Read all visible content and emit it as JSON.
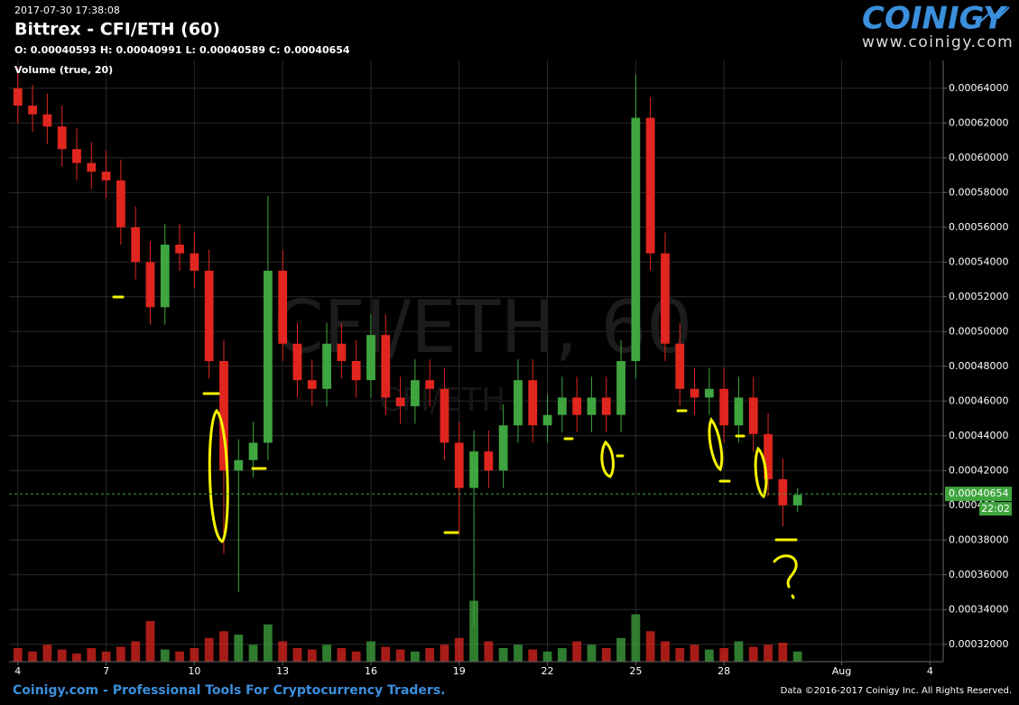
{
  "chart_data": {
    "type": "candlestick",
    "title": "Bittrex - CFI/ETH (60)",
    "subtitle": "2017-07-30 17:38:08",
    "ohlc_summary": [
      {
        "label": "O:",
        "value": 0.00040593
      },
      {
        "label": "H:",
        "value": 0.00040991
      },
      {
        "label": "L:",
        "value": 0.00040589
      },
      {
        "label": "C:",
        "value": 0.00040654
      }
    ],
    "volume_label": "Volume (true, 20)",
    "watermark": "CFI/ETH, 60",
    "watermark_sub": "CFI/ETH",
    "up_color": "#3fa53f",
    "down_color": "#e0261f",
    "grid": true,
    "x": [
      0,
      0.5,
      1,
      1.5,
      2,
      2.5,
      3,
      3.5,
      4,
      4.5,
      5,
      5.5,
      6,
      6.5,
      7,
      7.5,
      8,
      8.5,
      9,
      9.5,
      10,
      10.5,
      11,
      11.5,
      12,
      12.5,
      13,
      13.5,
      14,
      14.5,
      15,
      15.5,
      16,
      16.5,
      17,
      17.5,
      18,
      18.5,
      19,
      19.5,
      20,
      20.5,
      21,
      21.5,
      22,
      22.5,
      23,
      23.5,
      24,
      24.5,
      25,
      25.5,
      26,
      26.5
    ],
    "open": [
      0.00064,
      0.00063,
      0.000625,
      0.000618,
      0.000605,
      0.000597,
      0.000592,
      0.000587,
      0.00056,
      0.00054,
      0.000514,
      0.00055,
      0.000545,
      0.000535,
      0.000483,
      0.00042,
      0.000426,
      0.000436,
      0.000535,
      0.000493,
      0.000472,
      0.000467,
      0.000493,
      0.000483,
      0.000472,
      0.000498,
      0.000462,
      0.000457,
      0.000472,
      0.000467,
      0.000436,
      0.00041,
      0.000431,
      0.00042,
      0.000446,
      0.000472,
      0.000446,
      0.000452,
      0.000462,
      0.000452,
      0.000462,
      0.000452,
      0.000483,
      0.000623,
      0.000545,
      0.000493,
      0.000467,
      0.000462,
      0.000467,
      0.000446,
      0.000462,
      0.000441,
      0.000415,
      0.0004
    ],
    "high": [
      0.000652,
      0.000642,
      0.000637,
      0.00063,
      0.000617,
      0.000609,
      0.000604,
      0.000599,
      0.000572,
      0.000552,
      0.000562,
      0.000562,
      0.000557,
      0.000547,
      0.000495,
      0.000438,
      0.000448,
      0.000578,
      0.000547,
      0.000505,
      0.000484,
      0.000505,
      0.000505,
      0.000495,
      0.00051,
      0.00051,
      0.000474,
      0.000484,
      0.000484,
      0.000479,
      0.000448,
      0.000443,
      0.000443,
      0.000458,
      0.000484,
      0.000484,
      0.000464,
      0.000474,
      0.000474,
      0.000474,
      0.000474,
      0.000495,
      0.000648,
      0.000635,
      0.000557,
      0.000505,
      0.000479,
      0.000479,
      0.000479,
      0.000474,
      0.000474,
      0.000453,
      0.000427,
      0.00041
    ],
    "low": [
      0.00062,
      0.000615,
      0.000608,
      0.000595,
      0.000587,
      0.000582,
      0.000577,
      0.00055,
      0.00053,
      0.000504,
      0.000504,
      0.000535,
      0.000525,
      0.000473,
      0.000372,
      0.00035,
      0.000416,
      0.000426,
      0.000483,
      0.000462,
      0.000457,
      0.000457,
      0.000473,
      0.000462,
      0.000462,
      0.000452,
      0.000447,
      0.000447,
      0.000457,
      0.000426,
      0.000383,
      0.00033,
      0.00041,
      0.00041,
      0.000436,
      0.000436,
      0.000436,
      0.000442,
      0.000442,
      0.000442,
      0.000442,
      0.000442,
      0.000473,
      0.000535,
      0.000483,
      0.000457,
      0.000452,
      0.000452,
      0.000436,
      0.000436,
      0.000431,
      0.000405,
      0.000388,
      0.000396
    ],
    "close": [
      0.00063,
      0.000625,
      0.000618,
      0.000605,
      0.000597,
      0.000592,
      0.000587,
      0.00056,
      0.00054,
      0.000514,
      0.00055,
      0.000545,
      0.000535,
      0.000483,
      0.00042,
      0.000426,
      0.000436,
      0.000535,
      0.000493,
      0.000472,
      0.000467,
      0.000493,
      0.000483,
      0.000472,
      0.000498,
      0.000462,
      0.000457,
      0.000472,
      0.000467,
      0.000436,
      0.00041,
      0.000431,
      0.00042,
      0.000446,
      0.000472,
      0.000446,
      0.000452,
      0.000462,
      0.000452,
      0.000462,
      0.000452,
      0.000483,
      0.000623,
      0.000545,
      0.000493,
      0.000467,
      0.000462,
      0.000467,
      0.000446,
      0.000462,
      0.000441,
      0.000415,
      0.0004,
      0.000406
    ],
    "volume": [
      20,
      15,
      25,
      18,
      12,
      20,
      15,
      22,
      30,
      60,
      18,
      15,
      20,
      35,
      45,
      40,
      25,
      55,
      30,
      20,
      18,
      25,
      20,
      15,
      30,
      22,
      18,
      15,
      20,
      25,
      35,
      90,
      30,
      20,
      25,
      18,
      15,
      20,
      30,
      25,
      20,
      35,
      70,
      45,
      30,
      20,
      25,
      18,
      20,
      30,
      22,
      25,
      28,
      15
    ],
    "volume_lim": [
      0,
      100
    ],
    "xlim": [
      -0.3,
      31.45
    ],
    "xticks": [
      {
        "value": 0,
        "label": "4"
      },
      {
        "value": 3,
        "label": "7"
      },
      {
        "value": 6,
        "label": "10"
      },
      {
        "value": 9,
        "label": "13"
      },
      {
        "value": 12,
        "label": "16"
      },
      {
        "value": 15,
        "label": "19"
      },
      {
        "value": 18,
        "label": "22"
      },
      {
        "value": 21,
        "label": "25"
      },
      {
        "value": 24,
        "label": "28"
      },
      {
        "value": 28,
        "label": "Aug"
      },
      {
        "value": 31,
        "label": "4"
      }
    ],
    "ylim": [
      0.00031,
      0.000656
    ],
    "yticks": [
      {
        "value": 0.00032,
        "label": "0.00032000"
      },
      {
        "value": 0.00034,
        "label": "0.00034000"
      },
      {
        "value": 0.00036,
        "label": "0.00036000"
      },
      {
        "value": 0.00038,
        "label": "0.00038000"
      },
      {
        "value": 0.0004,
        "label": "0.000400"
      },
      {
        "value": 0.00042,
        "label": "0.00042000"
      },
      {
        "value": 0.00044,
        "label": "0.00044000"
      },
      {
        "value": 0.00046,
        "label": "0.00046000"
      },
      {
        "value": 0.00048,
        "label": "0.00048000"
      },
      {
        "value": 0.0005,
        "label": "0.00050000"
      },
      {
        "value": 0.00052,
        "label": "0.00052000"
      },
      {
        "value": 0.00054,
        "label": "0.00054000"
      },
      {
        "value": 0.00056,
        "label": "0.00056000"
      },
      {
        "value": 0.00058,
        "label": "0.00058000"
      },
      {
        "value": 0.0006,
        "label": "0.00060000"
      },
      {
        "value": 0.00062,
        "label": "0.00062000"
      },
      {
        "value": 0.00064,
        "label": "0.00064000"
      }
    ],
    "last_price": 0.00040654,
    "last_price_color": "#3fa53f",
    "countdown": "22:02"
  },
  "branding": {
    "logo": "COINIGY",
    "logo_url": "www.coinigy.com",
    "footer_left": "Coinigy.com - Professional Tools For Cryptocurrency Traders.",
    "footer_right": "Data ©2016-2017 Coinigy Inc. All Rights Reserved."
  }
}
